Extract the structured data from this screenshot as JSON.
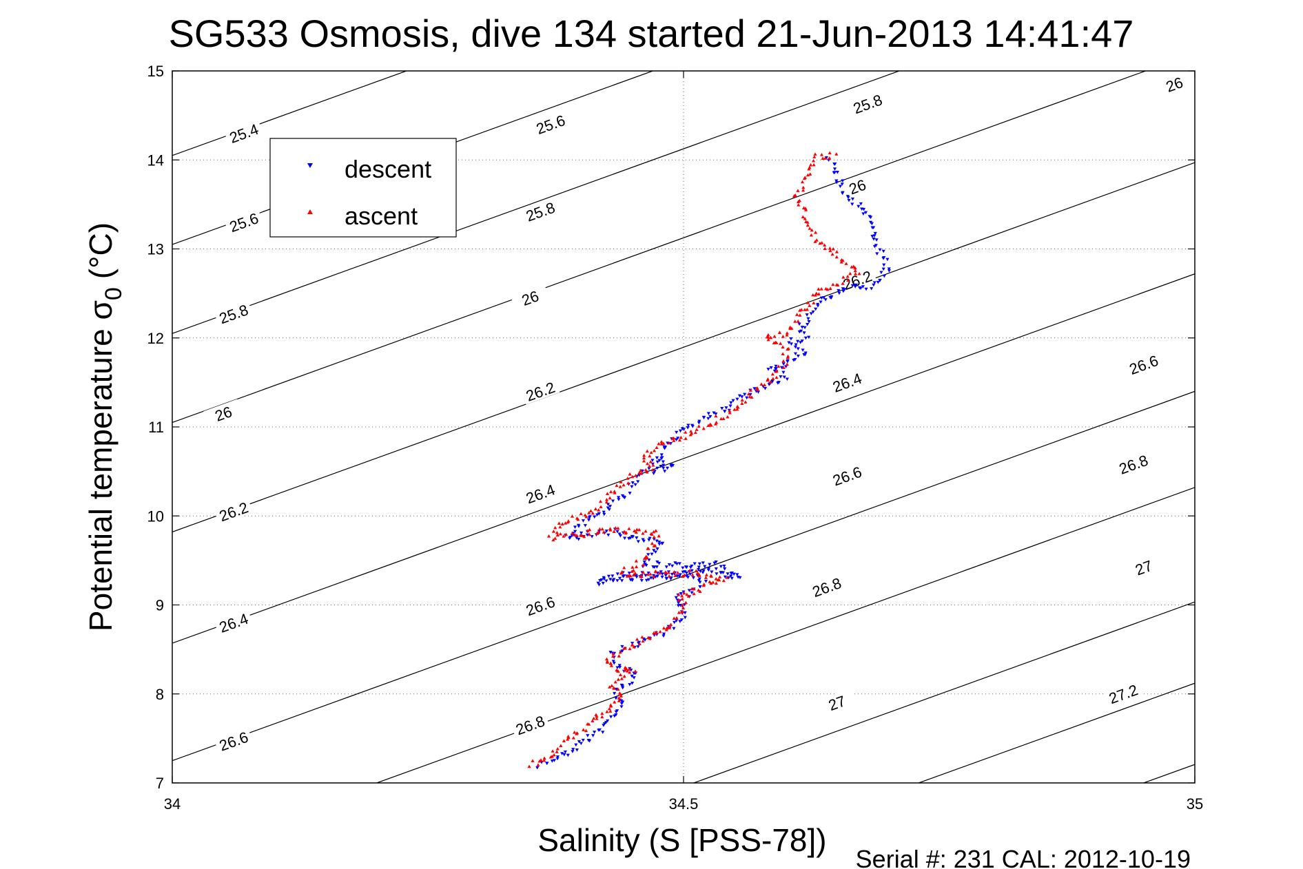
{
  "chart_data": {
    "type": "scatter",
    "title": "SG533 Osmosis, dive 134 started 21-Jun-2013 14:41:47",
    "xlabel": "Salinity (S [PSS-78])",
    "ylabel": "Potential temperature σ",
    "ylabel_subscript": "0",
    "ylabel_units": "(°C)",
    "xlim": [
      34,
      35
    ],
    "ylim": [
      7,
      15
    ],
    "xticks": [
      {
        "value": 34,
        "label": "34"
      },
      {
        "value": 34.5,
        "label": "34.5"
      },
      {
        "value": 35,
        "label": "35"
      }
    ],
    "yticks": [
      {
        "value": 7,
        "label": "7"
      },
      {
        "value": 8,
        "label": "8"
      },
      {
        "value": 9,
        "label": "9"
      },
      {
        "value": 10,
        "label": "10"
      },
      {
        "value": 11,
        "label": "11"
      },
      {
        "value": 12,
        "label": "12"
      },
      {
        "value": 13,
        "label": "13"
      },
      {
        "value": 14,
        "label": "14"
      },
      {
        "value": 15,
        "label": "15"
      }
    ],
    "grid": "dotted at x=34.5 and each y tick",
    "legend_placement": "upper-left",
    "contour_color": "#000000",
    "isopycnals": [
      {
        "label": "25.4",
        "s0": 34.0,
        "t0": 14.05,
        "label_positions": [
          [
            34.07,
            14.3
          ]
        ]
      },
      {
        "label": "25.6",
        "s0": 34.0,
        "t0": 13.05,
        "label_positions": [
          [
            34.07,
            13.3
          ],
          [
            34.37,
            14.4
          ]
        ]
      },
      {
        "label": "25.8",
        "s0": 34.0,
        "t0": 12.05,
        "label_positions": [
          [
            34.06,
            12.27
          ],
          [
            34.36,
            13.42
          ],
          [
            34.68,
            14.63
          ]
        ]
      },
      {
        "label": "26",
        "s0": 34.0,
        "t0": 11.05,
        "label_positions": [
          [
            34.05,
            11.15
          ],
          [
            34.35,
            12.45
          ],
          [
            34.67,
            13.7
          ],
          [
            34.98,
            14.85
          ]
        ]
      },
      {
        "label": "26.2",
        "s0": 34.0,
        "t0": 9.82,
        "label_positions": [
          [
            34.06,
            10.05
          ],
          [
            34.36,
            11.4
          ],
          [
            34.67,
            12.65
          ]
        ]
      },
      {
        "label": "26.4",
        "s0": 34.0,
        "t0": 8.57,
        "label_positions": [
          [
            34.06,
            8.8
          ],
          [
            34.36,
            10.25
          ],
          [
            34.66,
            11.5
          ]
        ]
      },
      {
        "label": "26.6",
        "s0": 34.0,
        "t0": 7.25,
        "label_positions": [
          [
            34.06,
            7.47
          ],
          [
            34.36,
            8.99
          ],
          [
            34.66,
            10.45
          ],
          [
            34.95,
            11.7
          ]
        ]
      },
      {
        "label": "26.8",
        "s0": 34.2,
        "t0": 7.0,
        "label_positions": [
          [
            34.35,
            7.65
          ],
          [
            34.64,
            9.2
          ],
          [
            34.94,
            10.58
          ]
        ]
      },
      {
        "label": "27",
        "s0": 34.51,
        "t0": 7.0,
        "label_positions": [
          [
            34.65,
            7.9
          ],
          [
            34.95,
            9.42
          ]
        ]
      },
      {
        "label": "27.2",
        "s0": 34.73,
        "t0": 7.0,
        "label_positions": [
          [
            34.93,
            8.0
          ]
        ]
      },
      {
        "label": "",
        "s0": 34.95,
        "t0": 7.0,
        "label_positions": []
      }
    ],
    "series": [
      {
        "name": "descent",
        "color": "#0000ff",
        "marker": "triangle-down",
        "path": [
          [
            34.36,
            7.2
          ],
          [
            34.38,
            7.3
          ],
          [
            34.4,
            7.45
          ],
          [
            34.42,
            7.6
          ],
          [
            34.43,
            7.75
          ],
          [
            34.44,
            7.9
          ],
          [
            34.435,
            8.0
          ],
          [
            34.44,
            8.1
          ],
          [
            34.455,
            8.2
          ],
          [
            34.44,
            8.3
          ],
          [
            34.43,
            8.45
          ],
          [
            34.45,
            8.55
          ],
          [
            34.48,
            8.7
          ],
          [
            34.5,
            8.85
          ],
          [
            34.5,
            9.0
          ],
          [
            34.49,
            9.05
          ],
          [
            34.51,
            9.15
          ],
          [
            34.52,
            9.3
          ],
          [
            34.5,
            9.33
          ],
          [
            34.44,
            9.3
          ],
          [
            34.415,
            9.25
          ],
          [
            34.44,
            9.33
          ],
          [
            34.5,
            9.35
          ],
          [
            34.53,
            9.38
          ],
          [
            34.555,
            9.3
          ],
          [
            34.53,
            9.45
          ],
          [
            34.46,
            9.45
          ],
          [
            34.47,
            9.6
          ],
          [
            34.48,
            9.7
          ],
          [
            34.45,
            9.75
          ],
          [
            34.43,
            9.82
          ],
          [
            34.41,
            9.8
          ],
          [
            34.385,
            9.75
          ],
          [
            34.4,
            9.9
          ],
          [
            34.42,
            10.05
          ],
          [
            34.44,
            10.2
          ],
          [
            34.45,
            10.35
          ],
          [
            34.46,
            10.5
          ],
          [
            34.49,
            10.55
          ],
          [
            34.47,
            10.6
          ],
          [
            34.48,
            10.7
          ],
          [
            34.49,
            10.85
          ],
          [
            34.5,
            11.0
          ],
          [
            34.52,
            11.1
          ],
          [
            34.54,
            11.2
          ],
          [
            34.56,
            11.35
          ],
          [
            34.59,
            11.5
          ],
          [
            34.6,
            11.55
          ],
          [
            34.585,
            11.65
          ],
          [
            34.6,
            11.7
          ],
          [
            34.61,
            11.8
          ],
          [
            34.62,
            11.85
          ],
          [
            34.605,
            11.95
          ],
          [
            34.62,
            12.0
          ],
          [
            34.615,
            12.1
          ],
          [
            34.62,
            12.2
          ],
          [
            34.63,
            12.35
          ],
          [
            34.64,
            12.45
          ],
          [
            34.66,
            12.55
          ],
          [
            34.69,
            12.6
          ],
          [
            34.7,
            12.8
          ],
          [
            34.69,
            13.0
          ],
          [
            34.685,
            13.2
          ],
          [
            34.68,
            13.4
          ],
          [
            34.66,
            13.6
          ],
          [
            34.65,
            13.8
          ],
          [
            34.645,
            14.0
          ],
          [
            34.64,
            14.05
          ]
        ]
      },
      {
        "name": "ascent",
        "color": "#ff0000",
        "marker": "triangle-up",
        "path": [
          [
            34.35,
            7.2
          ],
          [
            34.37,
            7.32
          ],
          [
            34.39,
            7.5
          ],
          [
            34.41,
            7.7
          ],
          [
            34.43,
            7.85
          ],
          [
            34.44,
            8.0
          ],
          [
            34.43,
            8.1
          ],
          [
            34.44,
            8.2
          ],
          [
            34.45,
            8.25
          ],
          [
            34.43,
            8.3
          ],
          [
            34.425,
            8.4
          ],
          [
            34.45,
            8.55
          ],
          [
            34.47,
            8.65
          ],
          [
            34.49,
            8.8
          ],
          [
            34.5,
            9.0
          ],
          [
            34.495,
            9.1
          ],
          [
            34.52,
            9.2
          ],
          [
            34.54,
            9.3
          ],
          [
            34.51,
            9.35
          ],
          [
            34.44,
            9.35
          ],
          [
            34.46,
            9.5
          ],
          [
            34.47,
            9.65
          ],
          [
            34.475,
            9.8
          ],
          [
            34.43,
            9.85
          ],
          [
            34.4,
            9.8
          ],
          [
            34.37,
            9.75
          ],
          [
            34.38,
            9.9
          ],
          [
            34.41,
            10.05
          ],
          [
            34.43,
            10.25
          ],
          [
            34.45,
            10.45
          ],
          [
            34.47,
            10.55
          ],
          [
            34.46,
            10.65
          ],
          [
            34.475,
            10.8
          ],
          [
            34.5,
            10.9
          ],
          [
            34.52,
            11.0
          ],
          [
            34.55,
            11.2
          ],
          [
            34.57,
            11.4
          ],
          [
            34.59,
            11.6
          ],
          [
            34.6,
            11.75
          ],
          [
            34.6,
            11.9
          ],
          [
            34.58,
            12.0
          ],
          [
            34.6,
            12.05
          ],
          [
            34.61,
            12.2
          ],
          [
            34.62,
            12.35
          ],
          [
            34.63,
            12.5
          ],
          [
            34.65,
            12.6
          ],
          [
            34.67,
            12.75
          ],
          [
            34.63,
            13.1
          ],
          [
            34.61,
            13.6
          ],
          [
            34.62,
            13.8
          ],
          [
            34.63,
            14.05
          ],
          [
            34.65,
            14.05
          ]
        ]
      }
    ],
    "legend": [
      {
        "label": "descent",
        "color": "#0000ff",
        "marker": "triangle-down"
      },
      {
        "label": "ascent",
        "color": "#ff0000",
        "marker": "triangle-up"
      }
    ]
  },
  "footer": {
    "serial": "Serial #: 231  CAL: 2012-10-19"
  }
}
